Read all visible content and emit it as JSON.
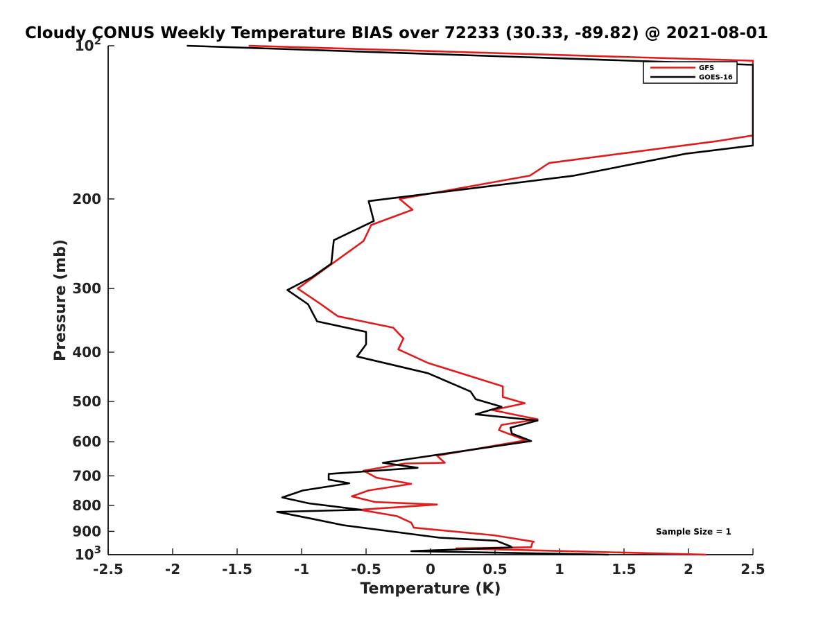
{
  "chart_data": {
    "type": "line",
    "title": "Cloudy CONUS Weekly Temperature BIAS over 72233 (30.33, -89.82) @ 2021-08-01",
    "xlabel": "Temperature (K)",
    "ylabel": "Pressure (mb)",
    "xlim": [
      -2.5,
      2.5
    ],
    "ylim": [
      100,
      1000
    ],
    "yscale": "log",
    "yreversed": true,
    "x_ticks": [
      "-2.5",
      "-2",
      "-1.5",
      "-1",
      "-0.5",
      "0",
      "0.5",
      "1",
      "1.5",
      "2",
      "2.5"
    ],
    "y_ticks": [
      {
        "value": 100,
        "base": "10",
        "exp": "2"
      },
      {
        "value": 200,
        "label": "200"
      },
      {
        "value": 300,
        "label": "300"
      },
      {
        "value": 400,
        "label": "400"
      },
      {
        "value": 500,
        "label": "500"
      },
      {
        "value": 600,
        "label": "600"
      },
      {
        "value": 700,
        "label": "700"
      },
      {
        "value": 800,
        "label": "800"
      },
      {
        "value": 900,
        "label": "900"
      },
      {
        "value": 1000,
        "base": "10",
        "exp": "3"
      }
    ],
    "grid": false,
    "legend_position": "top-right",
    "annotation": "Sample Size = 1",
    "series": [
      {
        "name": "GFS",
        "color": "#e31a1c",
        "points": [
          [
            -1.41,
            100
          ],
          [
            2.5,
            107
          ],
          [
            2.5,
            150
          ],
          [
            2.22,
            154
          ],
          [
            0.92,
            170
          ],
          [
            0.77,
            180
          ],
          [
            -0.24,
            200
          ],
          [
            -0.14,
            210
          ],
          [
            -0.46,
            225
          ],
          [
            -0.52,
            242
          ],
          [
            -0.78,
            270
          ],
          [
            -1.03,
            300
          ],
          [
            -0.85,
            322
          ],
          [
            -0.72,
            340
          ],
          [
            -0.29,
            358
          ],
          [
            -0.21,
            376
          ],
          [
            -0.25,
            395
          ],
          [
            -0.02,
            420
          ],
          [
            0.56,
            467
          ],
          [
            0.56,
            490
          ],
          [
            0.73,
            504
          ],
          [
            0.48,
            520
          ],
          [
            0.83,
            542
          ],
          [
            0.55,
            556
          ],
          [
            0.53,
            569
          ],
          [
            0.6,
            578
          ],
          [
            0.74,
            596
          ],
          [
            0.05,
            639
          ],
          [
            0.11,
            660
          ],
          [
            -0.2,
            662
          ],
          [
            -0.52,
            684
          ],
          [
            -0.42,
            706
          ],
          [
            -0.15,
            726
          ],
          [
            -0.48,
            748
          ],
          [
            -0.61,
            768
          ],
          [
            -0.43,
            788
          ],
          [
            0.05,
            797
          ],
          [
            -0.55,
            816
          ],
          [
            -0.26,
            840
          ],
          [
            -0.15,
            865
          ],
          [
            -0.13,
            885
          ],
          [
            0.49,
            916
          ],
          [
            0.8,
            943
          ],
          [
            0.79,
            947
          ],
          [
            0.78,
            967
          ],
          [
            0.2,
            972
          ],
          [
            2.14,
            1000
          ]
        ]
      },
      {
        "name": "GOES-16",
        "color": "#000000",
        "points": [
          [
            -1.89,
            100
          ],
          [
            2.5,
            109
          ],
          [
            2.5,
            157
          ],
          [
            1.98,
            163
          ],
          [
            1.11,
            180
          ],
          [
            -0.48,
            202
          ],
          [
            -0.44,
            221
          ],
          [
            -0.75,
            241
          ],
          [
            -0.77,
            268
          ],
          [
            -0.92,
            285
          ],
          [
            -1.11,
            302
          ],
          [
            -0.95,
            322
          ],
          [
            -0.88,
            348
          ],
          [
            -0.5,
            365
          ],
          [
            -0.5,
            386
          ],
          [
            -0.57,
            408
          ],
          [
            -0.02,
            440
          ],
          [
            0.31,
            478
          ],
          [
            0.35,
            495
          ],
          [
            0.55,
            512
          ],
          [
            0.35,
            530
          ],
          [
            0.83,
            545
          ],
          [
            0.62,
            563
          ],
          [
            0.63,
            578
          ],
          [
            0.78,
            598
          ],
          [
            -0.37,
            660
          ],
          [
            -0.1,
            675
          ],
          [
            -0.79,
            694
          ],
          [
            -0.79,
            712
          ],
          [
            -0.63,
            724
          ],
          [
            -0.99,
            748
          ],
          [
            -1.15,
            772
          ],
          [
            -0.94,
            793
          ],
          [
            -0.54,
            816
          ],
          [
            -1.19,
            824
          ],
          [
            -0.92,
            850
          ],
          [
            -0.68,
            875
          ],
          [
            0.07,
            926
          ],
          [
            0.51,
            939
          ],
          [
            0.62,
            963
          ],
          [
            0.63,
            968
          ],
          [
            -0.15,
            984
          ],
          [
            1.38,
            1000
          ]
        ]
      }
    ]
  }
}
